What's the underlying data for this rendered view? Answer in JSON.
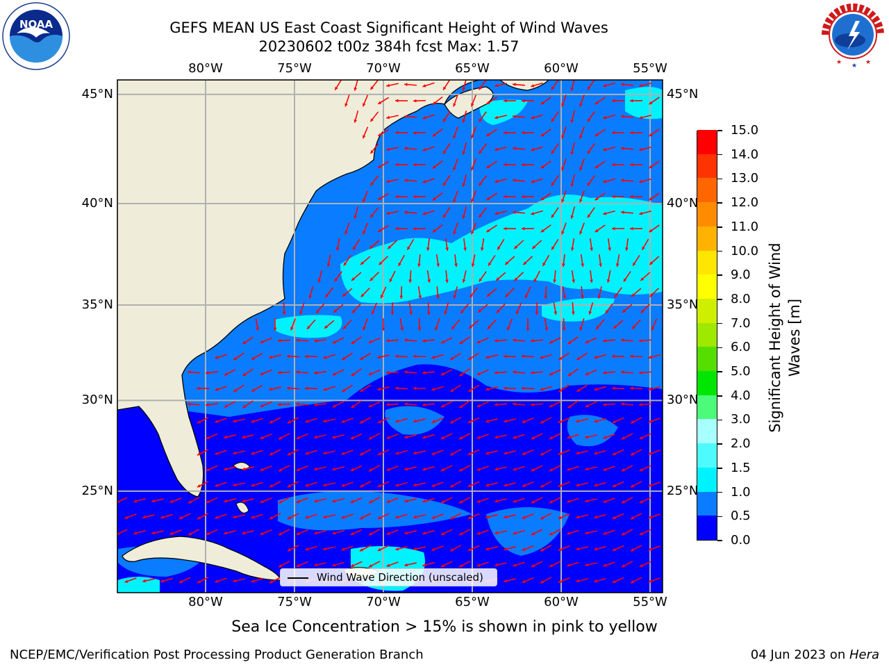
{
  "titles": {
    "line1": "GEFS MEAN US East Coast Significant Height of Wind Waves",
    "line2": "20230602 t00z 384h fcst   Max: 1.57"
  },
  "map": {
    "lon_labels": [
      "80°W",
      "75°W",
      "70°W",
      "65°W",
      "60°W",
      "55°W"
    ],
    "lat_labels": [
      "45°N",
      "40°N",
      "35°N",
      "30°N",
      "25°N"
    ],
    "lon_values": [
      -80,
      -75,
      -70,
      -65,
      -60,
      -55
    ],
    "lat_values": [
      45,
      40,
      35,
      30,
      25
    ],
    "gridlines": true
  },
  "legend": {
    "label": "Wind Wave Direction (unscaled)"
  },
  "colorbar": {
    "label": "Significant Height of Wind Waves [m]",
    "levels": [
      "0.0",
      "0.5",
      "1.0",
      "1.5",
      "2.0",
      "3.0",
      "4.0",
      "5.0",
      "6.0",
      "7.0",
      "8.0",
      "9.0",
      "10.0",
      "11.0",
      "12.0",
      "13.0",
      "14.0",
      "15.0"
    ],
    "colors": [
      "#0000ff",
      "#0a7cff",
      "#00f2ff",
      "#4dfbff",
      "#a8ffff",
      "#4dfb7a",
      "#00e600",
      "#55de00",
      "#9fe800",
      "#cfef00",
      "#ffff00",
      "#ffe600",
      "#ffb300",
      "#ff8c00",
      "#ff6600",
      "#ff3300",
      "#ff0000"
    ]
  },
  "footer": {
    "ice_note": "Sea Ice Concentration > 15% is shown in pink to yellow",
    "credit": "NCEP/EMC/Verification Post Processing Product Generation Branch",
    "date": "04 Jun 2023 on ",
    "host": "Hera"
  },
  "logos": {
    "noaa": {
      "text": "NOAA",
      "ring_text": "NATIONAL OCEANIC AND ATMOSPHERIC ADMINISTRATION · U.S. DEPARTMENT OF COMMERCE"
    },
    "nws": {
      "ring_text": "NATIONAL WEATHER SERVICE"
    }
  },
  "colors": {
    "land": "#efedda",
    "coast": "#000000",
    "grid": "#b0b0b0",
    "arrow": "#ff0000",
    "wave_0_05": "#0000ff",
    "wave_05_10": "#0a7cff",
    "wave_10_15": "#00f2ff",
    "wave_15_20": "#4dfbff"
  }
}
